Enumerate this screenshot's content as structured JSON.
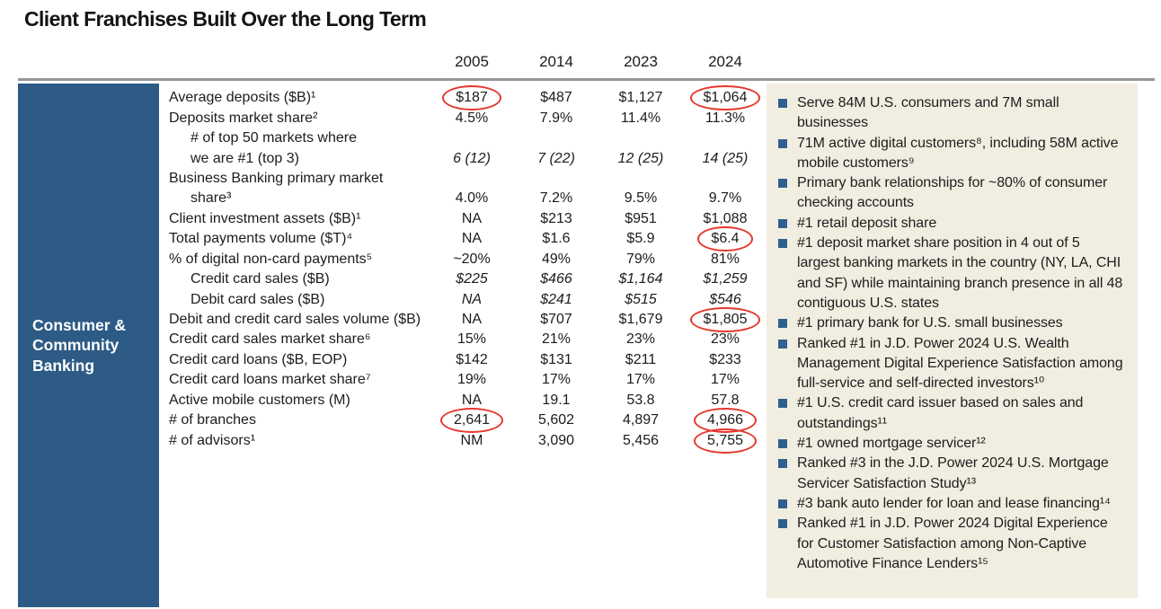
{
  "title": "Client Franchises Built Over the Long Term",
  "colors": {
    "segment_blue": "#2d5b85",
    "bullet_blue": "#2e608f",
    "panel_beige": "#f2ede1",
    "circle_red": "#e5372d",
    "rule_gray": "#969696",
    "text": "#1c1c1c"
  },
  "segment_label": {
    "lines": [
      "Consumer &",
      "Community",
      "Banking"
    ]
  },
  "table": {
    "year_headers": [
      "2005",
      "2014",
      "2023",
      "2024"
    ],
    "rows": [
      {
        "label": "Average deposits ($B)¹",
        "indent": 0,
        "values": [
          "$187",
          "$487",
          "$1,127",
          "$1,064"
        ],
        "circled": [
          0,
          3
        ]
      },
      {
        "label": "Deposits market share²",
        "indent": 0,
        "values": [
          "4.5%",
          "7.9%",
          "11.4%",
          "11.3%"
        ]
      },
      {
        "label": "# of top 50 markets where",
        "indent": 1,
        "values": []
      },
      {
        "label": "we are #1 (top 3)",
        "indent": 1,
        "values": [
          "6 (12)",
          "7 (22)",
          "12 (25)",
          "14 (25)"
        ],
        "italic_values": true
      },
      {
        "label": "Business Banking primary market",
        "indent": 0,
        "values": []
      },
      {
        "label": "share³",
        "indent": 1,
        "values": [
          "4.0%",
          "7.2%",
          "9.5%",
          "9.7%"
        ]
      },
      {
        "label": "Client investment assets ($B)¹",
        "indent": 0,
        "values": [
          "NA",
          "$213",
          "$951",
          "$1,088"
        ]
      },
      {
        "label": "Total payments volume ($T)⁴",
        "indent": 0,
        "values": [
          "NA",
          "$1.6",
          "$5.9",
          "$6.4"
        ],
        "circled": [
          3
        ]
      },
      {
        "label": "% of digital non-card payments⁵",
        "indent": 0,
        "values": [
          "~20%",
          "49%",
          "79%",
          "81%"
        ]
      },
      {
        "label": "Credit card sales ($B)",
        "indent": 1,
        "values": [
          "$225",
          "$466",
          "$1,164",
          "$1,259"
        ],
        "italic_values": true
      },
      {
        "label": "Debit card sales ($B)",
        "indent": 1,
        "values": [
          "NA",
          "$241",
          "$515",
          "$546"
        ],
        "italic_values": true
      },
      {
        "label": "Debit and credit card sales volume ($B)",
        "indent": 0,
        "values": [
          "NA",
          "$707",
          "$1,679",
          "$1,805"
        ],
        "circled": [
          3
        ]
      },
      {
        "label": "Credit card sales market share⁶",
        "indent": 0,
        "values": [
          "15%",
          "21%",
          "23%",
          "23%"
        ]
      },
      {
        "label": "Credit card loans ($B, EOP)",
        "indent": 0,
        "values": [
          "$142",
          "$131",
          "$211",
          "$233"
        ]
      },
      {
        "label": "Credit card loans market share⁷",
        "indent": 0,
        "values": [
          "19%",
          "17%",
          "17%",
          "17%"
        ]
      },
      {
        "label": "Active mobile customers (M)",
        "indent": 0,
        "values": [
          "NA",
          "19.1",
          "53.8",
          "57.8"
        ]
      },
      {
        "label": "# of branches",
        "indent": 0,
        "values": [
          "2,641",
          "5,602",
          "4,897",
          "4,966"
        ],
        "circled": [
          0,
          3
        ]
      },
      {
        "label": "# of advisors¹",
        "indent": 0,
        "values": [
          "NM",
          "3,090",
          "5,456",
          "5,755"
        ],
        "circled": [
          3
        ]
      }
    ]
  },
  "highlights": {
    "bullets": [
      "Serve 84M U.S. consumers and 7M small businesses",
      "71M active digital customers⁸, including 58M active mobile customers⁹",
      "Primary bank relationships for ~80% of consumer checking accounts",
      "#1 retail deposit share",
      "#1 deposit market share position in 4 out of 5 largest banking markets in the country (NY, LA, CHI and SF) while maintaining branch presence in all 48 contiguous U.S. states",
      "#1 primary bank for U.S. small businesses",
      "Ranked #1 in J.D. Power 2024 U.S. Wealth Management Digital Experience Satisfaction among full-service and self-directed investors¹⁰",
      "#1 U.S. credit card issuer based on sales and outstandings¹¹",
      "#1 owned mortgage servicer¹²",
      "Ranked #3 in the J.D. Power 2024 U.S. Mortgage Servicer Satisfaction Study¹³",
      "#3 bank auto lender for loan and lease financing¹⁴",
      "Ranked #1 in J.D. Power 2024 Digital Experience for Customer Satisfaction among Non-Captive Automotive Finance Lenders¹⁵"
    ]
  }
}
